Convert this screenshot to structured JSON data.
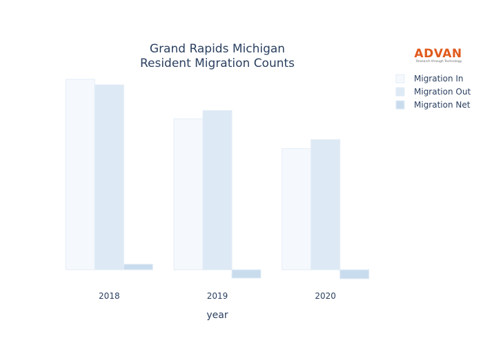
{
  "chart_data": {
    "type": "bar",
    "title": "Grand Rapids Michigan",
    "subtitle": "Resident Migration Counts",
    "xlabel": "year",
    "ylabel": "",
    "categories": [
      "2018",
      "2019",
      "2020"
    ],
    "series": [
      {
        "name": "Migration In",
        "values": [
          27500,
          21800,
          17500
        ],
        "color": "#f5f9fd"
      },
      {
        "name": "Migration Out",
        "values": [
          26700,
          23000,
          18800
        ],
        "color": "#dde9f5"
      },
      {
        "name": "Migration Net",
        "values": [
          800,
          -1200,
          -1300
        ],
        "color": "#c9dcee"
      }
    ],
    "ylim": [
      -1400,
      28000
    ],
    "grid": false,
    "legend_position": "top-right"
  },
  "logo": {
    "name": "ADVAN",
    "tagline": "Research through Technology",
    "color": "#e05a1c"
  },
  "colors": {
    "text": "#2a3f5f",
    "background": "#ffffff"
  }
}
